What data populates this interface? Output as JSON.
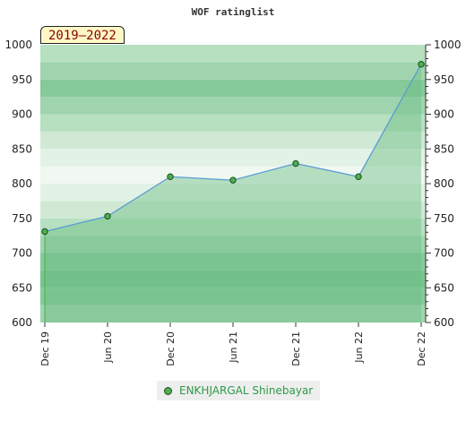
{
  "range_label": "2019–2022",
  "legend": {
    "series_name": "ENKHJARGAL Shinebayar"
  },
  "colors": {
    "line": "#5b9bd5",
    "fill": "#6dbf85",
    "marker": "#4caf50"
  },
  "chart_data": {
    "type": "area",
    "title": "WOF ratinglist",
    "xlabel": "",
    "ylabel": "",
    "ylim": [
      600,
      1000
    ],
    "y_ticks": [
      600,
      650,
      700,
      750,
      800,
      850,
      900,
      950,
      1000
    ],
    "x_ticks": [
      "Dec 19",
      "Jun 20",
      "Dec 20",
      "Jun 21",
      "Dec 21",
      "Jun 22",
      "Dec 22"
    ],
    "grid": true,
    "legend_position": "bottom",
    "series": [
      {
        "name": "ENKHJARGAL Shinebayar",
        "x": [
          "Dec 19",
          "Jun 20",
          "Dec 20",
          "Jun 21",
          "Dec 21",
          "Jun 22",
          "Dec 22"
        ],
        "values": [
          731,
          753,
          810,
          805,
          829,
          810,
          972
        ]
      }
    ]
  }
}
